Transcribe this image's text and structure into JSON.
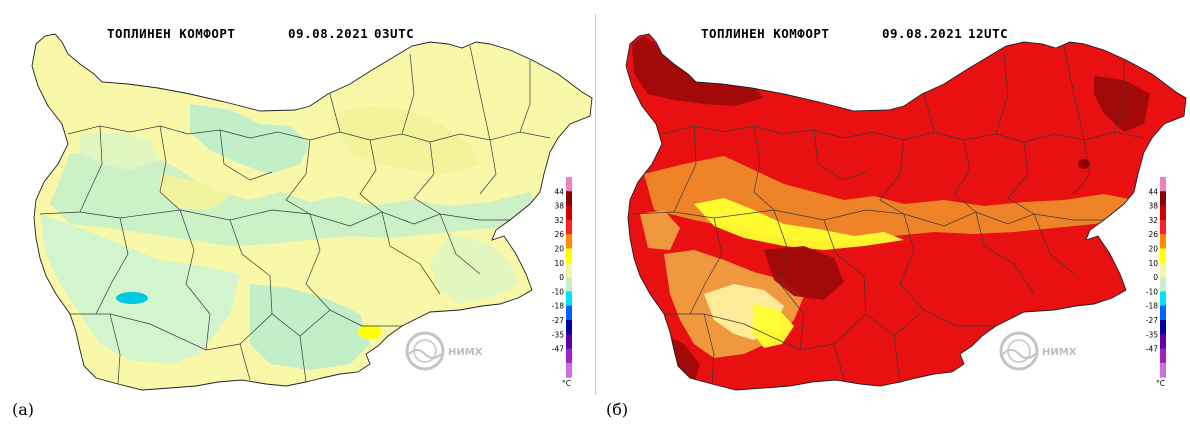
{
  "panels": [
    {
      "id": "a",
      "title_label": "ТОПЛИНЕН КОМФОРТ",
      "date": "09.08.2021",
      "time": "03UTC",
      "caption": "(а)",
      "base_color": "#f8f8a8",
      "zone_colors": [
        "#c8f0c8",
        "#d0f4d0",
        "#bfeec8",
        "#f2f29a",
        "#e0f6c0"
      ],
      "spot_colors": [
        "#ffff00",
        "#00c8e0"
      ],
      "logo_text": "НИМХ"
    },
    {
      "id": "b",
      "title_label": "ТОПЛИНЕН КОМФОРТ",
      "date": "09.08.2021",
      "time": "12UTC",
      "caption": "(б)",
      "base_color": "#e81010",
      "zone_colors": [
        "#ee8a2a",
        "#f0a040",
        "#ffff30",
        "#a00a0a",
        "#fff0a0"
      ],
      "spot_colors": [
        "#ffff40",
        "#900000"
      ],
      "logo_text": "НИМХ"
    }
  ],
  "legend": {
    "labels": [
      "44",
      "38",
      "32",
      "26",
      "20",
      "10",
      "0",
      "-10",
      "-18",
      "-27",
      "-35",
      "-47"
    ],
    "unit": "°C",
    "colors": [
      "#f080c0",
      "#8b0000",
      "#cc0000",
      "#ff2020",
      "#ff8c00",
      "#ffff00",
      "#f6f6a0",
      "#c8f0c8",
      "#00e0ff",
      "#0060ff",
      "#0000a0",
      "#6000a0",
      "#a020c0",
      "#d070e0"
    ]
  }
}
